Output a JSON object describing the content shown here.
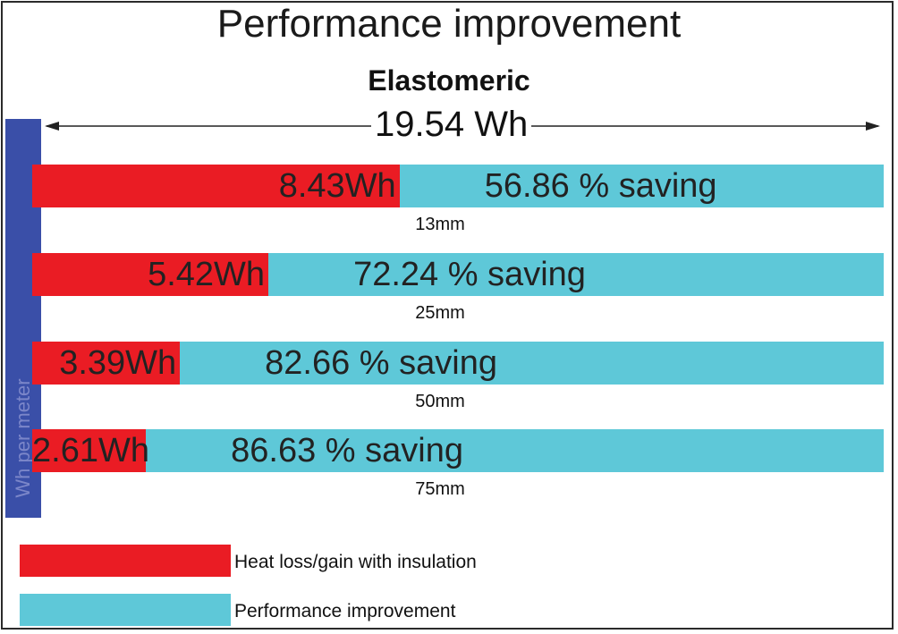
{
  "chart_data": {
    "type": "bar",
    "title": "Performance improvement",
    "subtitle": "Elastomeric",
    "total": 19.54,
    "total_label": "19.54 Wh",
    "ylabel": "Wh per meter",
    "categories": [
      "13mm",
      "25mm",
      "50mm",
      "75mm"
    ],
    "series": [
      {
        "name": "Heat loss/gain with insulation",
        "color": "#ea1c24",
        "values": [
          8.43,
          5.42,
          3.39,
          2.61
        ],
        "labels": [
          "8.43Wh",
          "5.42Wh",
          "3.39Wh",
          "2.61Wh"
        ]
      },
      {
        "name": "Performance improvement",
        "color": "#5ec8d8",
        "values": [
          56.86,
          72.24,
          82.66,
          86.63
        ],
        "labels": [
          "56.86 % saving",
          "72.24 % saving",
          "82.66 % saving",
          "86.63 % saving"
        ]
      }
    ],
    "xlim": [
      0,
      19.54
    ],
    "legend_placement": "bottom-left"
  }
}
